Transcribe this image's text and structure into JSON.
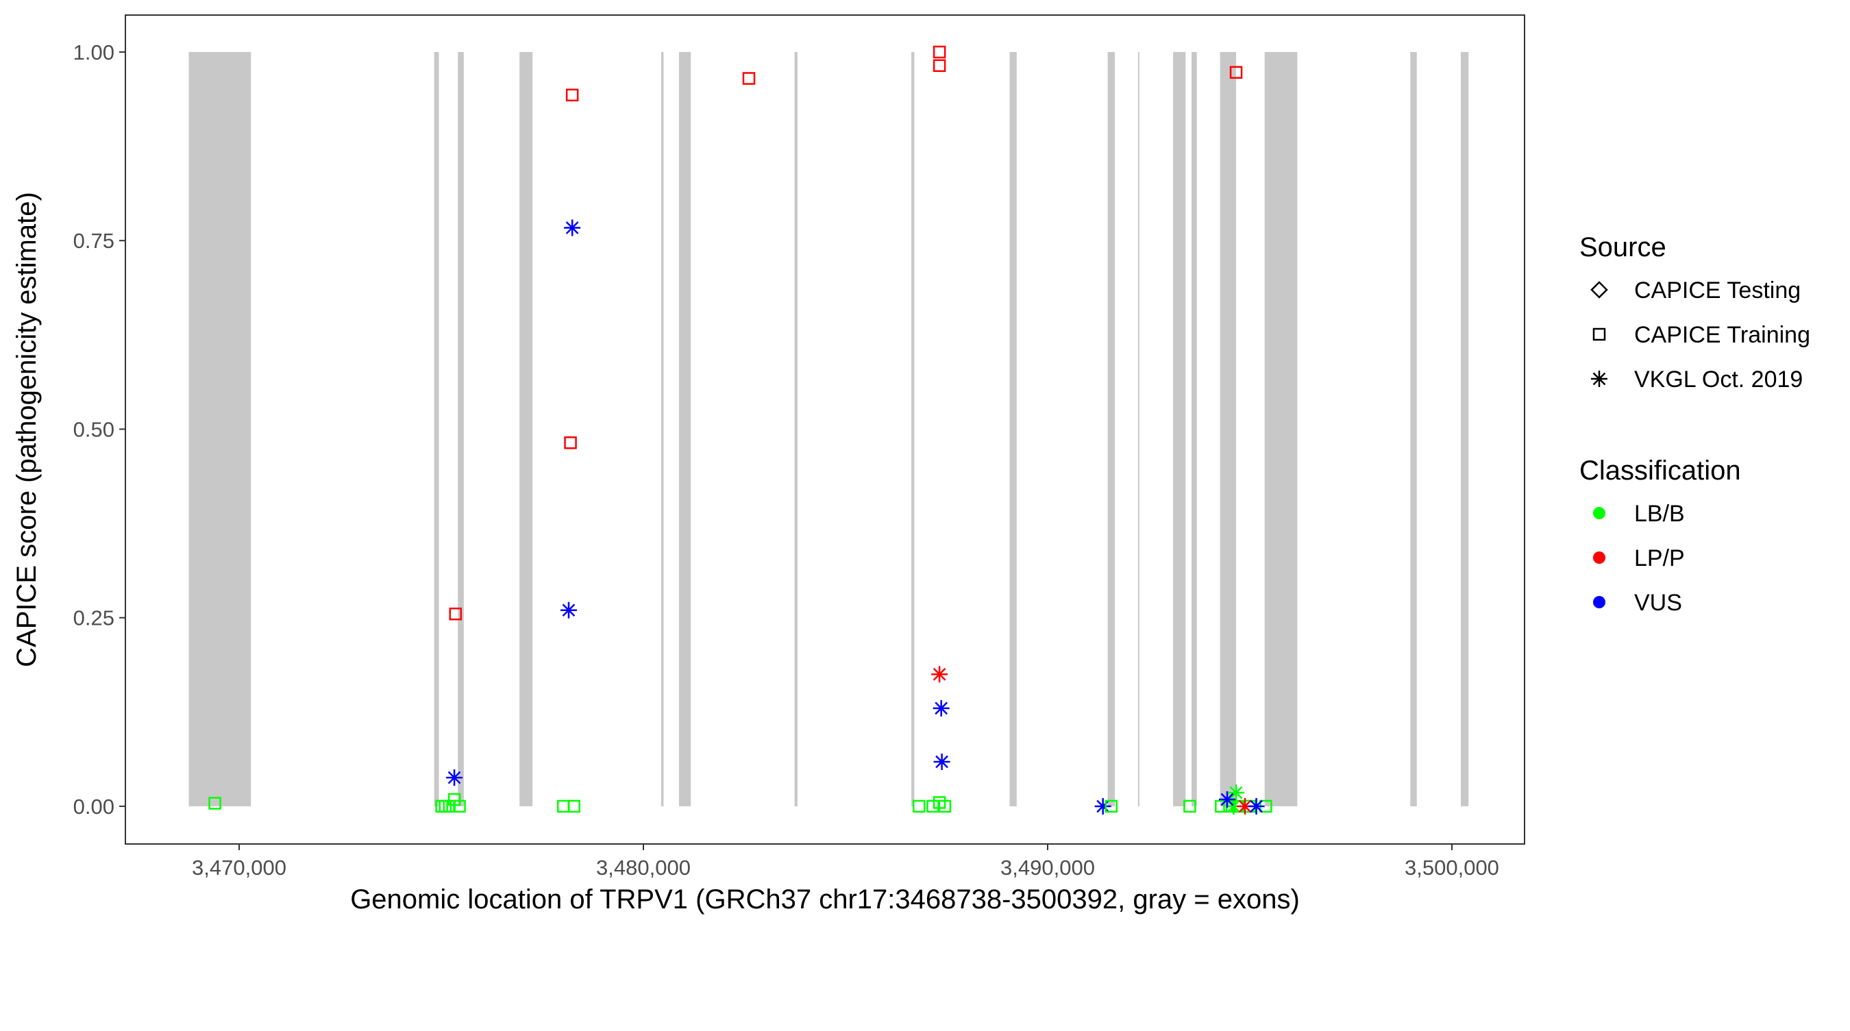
{
  "chart_data": {
    "type": "scatter",
    "title": "",
    "xlabel": "Genomic location of TRPV1 (GRCh37 chr17:3468738-3500392, gray = exons)",
    "ylabel": "CAPICE score (pathogenicity estimate)",
    "xlim": [
      3467186,
      3501797
    ],
    "ylim": [
      -0.05,
      1.049
    ],
    "x_ticks": [
      3470000,
      3480000,
      3490000,
      3500000
    ],
    "x_tick_labels": [
      "3,470,000",
      "3,480,000",
      "3,490,000",
      "3,500,000"
    ],
    "y_ticks": [
      0,
      0.25,
      0.5,
      0.75,
      1.0
    ],
    "y_tick_labels": [
      "0.00",
      "0.25",
      "0.50",
      "0.75",
      "1.00"
    ],
    "grid": false,
    "exon_color": "#c8c8c8",
    "exons": [
      [
        3468754,
        3470293
      ],
      [
        3474824,
        3474941
      ],
      [
        3475411,
        3475557
      ],
      [
        3476935,
        3477258
      ],
      [
        3480440,
        3480499
      ],
      [
        3480880,
        3481173
      ],
      [
        3483739,
        3483812
      ],
      [
        3486628,
        3486701
      ],
      [
        3489059,
        3489235
      ],
      [
        3491485,
        3491662
      ],
      [
        3492235,
        3492265
      ],
      [
        3493103,
        3493412
      ],
      [
        3493559,
        3493691
      ],
      [
        3494265,
        3494662
      ],
      [
        3495368,
        3496176
      ],
      [
        3498971,
        3499132
      ],
      [
        3500221,
        3500412
      ]
    ],
    "legend": {
      "placement": "right",
      "source": {
        "title": "Source",
        "entries": [
          {
            "label": "CAPICE Testing",
            "shape": "diamond"
          },
          {
            "label": "CAPICE Training",
            "shape": "square"
          },
          {
            "label": "VKGL Oct. 2019",
            "shape": "asterisk"
          }
        ]
      },
      "classification": {
        "title": "Classification",
        "entries": [
          {
            "label": "LB/B",
            "color": "#00ff00"
          },
          {
            "label": "LP/P",
            "color": "#ff0000"
          },
          {
            "label": "VUS",
            "color": "#0000ff"
          }
        ]
      }
    },
    "points": [
      {
        "x": 3469399,
        "y": 0.004,
        "source": "CAPICE Training",
        "class": "LB/B"
      },
      {
        "x": 3475010,
        "y": 0.0,
        "source": "CAPICE Training",
        "class": "LB/B"
      },
      {
        "x": 3475100,
        "y": 0.0,
        "source": "CAPICE Training",
        "class": "LB/B"
      },
      {
        "x": 3475200,
        "y": 0.0,
        "source": "CAPICE Training",
        "class": "LB/B"
      },
      {
        "x": 3475323,
        "y": 0.009,
        "source": "CAPICE Training",
        "class": "LB/B"
      },
      {
        "x": 3475450,
        "y": 0.0,
        "source": "CAPICE Training",
        "class": "LB/B"
      },
      {
        "x": 3475352,
        "y": 0.255,
        "source": "CAPICE Training",
        "class": "LP/P"
      },
      {
        "x": 3475323,
        "y": 0.038,
        "source": "VKGL Oct. 2019",
        "class": "VUS"
      },
      {
        "x": 3478240,
        "y": 0.943,
        "source": "CAPICE Training",
        "class": "LP/P"
      },
      {
        "x": 3478240,
        "y": 0.767,
        "source": "VKGL Oct. 2019",
        "class": "VUS"
      },
      {
        "x": 3478196,
        "y": 0.482,
        "source": "CAPICE Training",
        "class": "LP/P"
      },
      {
        "x": 3478152,
        "y": 0.26,
        "source": "VKGL Oct. 2019",
        "class": "VUS"
      },
      {
        "x": 3478020,
        "y": 0.0,
        "source": "CAPICE Training",
        "class": "LB/B"
      },
      {
        "x": 3478284,
        "y": 0.0,
        "source": "CAPICE Training",
        "class": "LB/B"
      },
      {
        "x": 3482610,
        "y": 0.965,
        "source": "CAPICE Training",
        "class": "LP/P"
      },
      {
        "x": 3486818,
        "y": 0.0,
        "source": "CAPICE Training",
        "class": "LB/B"
      },
      {
        "x": 3487324,
        "y": 1.0,
        "source": "CAPICE Training",
        "class": "LP/P"
      },
      {
        "x": 3487324,
        "y": 0.982,
        "source": "CAPICE Training",
        "class": "LP/P"
      },
      {
        "x": 3487324,
        "y": 0.175,
        "source": "VKGL Oct. 2019",
        "class": "LP/P"
      },
      {
        "x": 3487368,
        "y": 0.13,
        "source": "VKGL Oct. 2019",
        "class": "VUS"
      },
      {
        "x": 3487383,
        "y": 0.059,
        "source": "VKGL Oct. 2019",
        "class": "VUS"
      },
      {
        "x": 3487160,
        "y": 0.0,
        "source": "CAPICE Training",
        "class": "LB/B"
      },
      {
        "x": 3487324,
        "y": 0.005,
        "source": "CAPICE Training",
        "class": "LB/B"
      },
      {
        "x": 3487456,
        "y": 0.0,
        "source": "CAPICE Training",
        "class": "LB/B"
      },
      {
        "x": 3491368,
        "y": 0.0,
        "source": "VKGL Oct. 2019",
        "class": "VUS"
      },
      {
        "x": 3491574,
        "y": 0.0,
        "source": "CAPICE Training",
        "class": "LB/B"
      },
      {
        "x": 3493515,
        "y": 0.0,
        "source": "CAPICE Training",
        "class": "LB/B"
      },
      {
        "x": 3494662,
        "y": 0.973,
        "source": "CAPICE Training",
        "class": "LP/P"
      },
      {
        "x": 3494294,
        "y": 0.0,
        "source": "CAPICE Training",
        "class": "LB/B"
      },
      {
        "x": 3494500,
        "y": 0.0,
        "source": "CAPICE Training",
        "class": "LB/B"
      },
      {
        "x": 3494700,
        "y": 0.0,
        "source": "CAPICE Training",
        "class": "LB/B"
      },
      {
        "x": 3495000,
        "y": 0.0,
        "source": "CAPICE Training",
        "class": "LB/B"
      },
      {
        "x": 3495397,
        "y": 0.0,
        "source": "CAPICE Training",
        "class": "LB/B"
      },
      {
        "x": 3494662,
        "y": 0.018,
        "source": "VKGL Oct. 2019",
        "class": "LB/B"
      },
      {
        "x": 3494600,
        "y": 0.0,
        "source": "VKGL Oct. 2019",
        "class": "LB/B"
      },
      {
        "x": 3494441,
        "y": 0.009,
        "source": "VKGL Oct. 2019",
        "class": "VUS"
      },
      {
        "x": 3494882,
        "y": 0.0,
        "source": "VKGL Oct. 2019",
        "class": "LP/P"
      },
      {
        "x": 3495162,
        "y": 0.0,
        "source": "VKGL Oct. 2019",
        "class": "VUS"
      }
    ]
  }
}
